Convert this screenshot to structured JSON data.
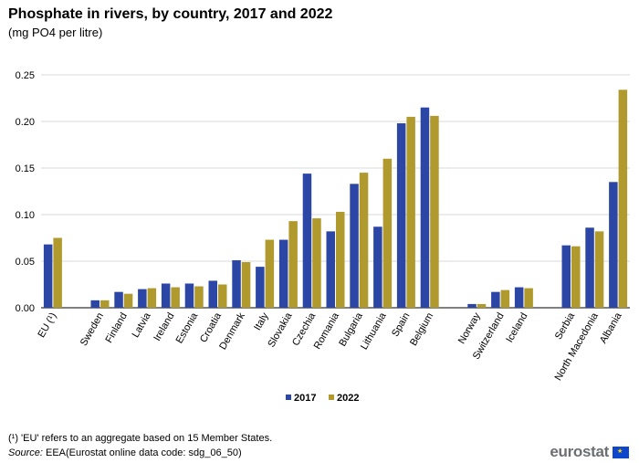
{
  "title": "Phosphate in rivers, by country, 2017 and 2022",
  "subtitle": "(mg  PO4 per litre)",
  "footnote": "(¹) 'EU' refers to an aggregate based on 15 Member States.",
  "source_label": "Source:",
  "source_text": " EEA(Eurostat online data code: sdg_06_50)",
  "logo_text": "eurostat",
  "colors": {
    "s2017": "#2c46a6",
    "s2022": "#b09a2e",
    "grid": "#d9d9d9",
    "axis": "#000000"
  },
  "chart_data": {
    "type": "bar",
    "title": "Phosphate in rivers, by country, 2017 and 2022",
    "ylabel": "mg PO4 per litre",
    "ylim": [
      0,
      0.25
    ],
    "yticks": [
      0.0,
      0.05,
      0.1,
      0.15,
      0.2,
      0.25
    ],
    "ytick_labels": [
      "0.00",
      "0.05",
      "0.10",
      "0.15",
      "0.20",
      "0.25"
    ],
    "legend_position": "bottom-center",
    "categories": [
      "EU (¹)",
      "",
      "Sweden",
      "Finland",
      "Latvia",
      "Ireland",
      "Estonia",
      "Croatia",
      "Denmark",
      "Italy",
      "Slovakia",
      "Czechia",
      "Romania",
      "Bulgaria",
      "Lithuania",
      "Spain",
      "Belgium",
      "",
      "Norway",
      "Switzerland",
      "Iceland",
      "",
      "Serbia",
      "North Macedonia",
      "Albania"
    ],
    "series": [
      {
        "name": "2017",
        "values": [
          0.068,
          null,
          0.008,
          0.017,
          0.02,
          0.026,
          0.026,
          0.029,
          0.051,
          0.044,
          0.073,
          0.144,
          0.082,
          0.133,
          0.087,
          0.198,
          0.215,
          null,
          0.004,
          0.017,
          0.022,
          null,
          0.067,
          0.086,
          0.135
        ]
      },
      {
        "name": "2022",
        "values": [
          0.075,
          null,
          0.008,
          0.015,
          0.021,
          0.022,
          0.023,
          0.025,
          0.049,
          0.073,
          0.093,
          0.096,
          0.103,
          0.145,
          0.16,
          0.205,
          0.206,
          null,
          0.004,
          0.019,
          0.021,
          null,
          0.066,
          0.082,
          0.234
        ]
      }
    ]
  }
}
